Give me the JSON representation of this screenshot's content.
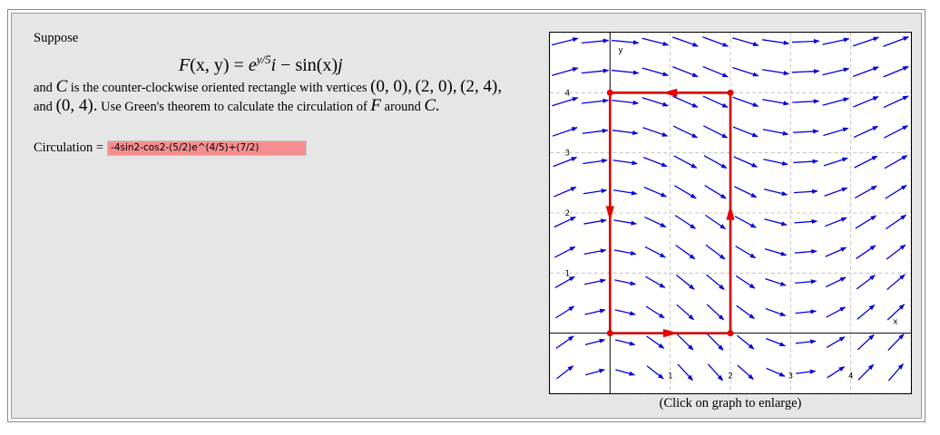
{
  "problem": {
    "intro": "Suppose",
    "formula": {
      "lhs_vec": "F",
      "lhs_args": "(x, y) =",
      "exp_base": "e",
      "exp_power": "y/5",
      "i_vec": "i",
      "minus_sin": "− sin(x)",
      "j_vec": "j"
    },
    "text1": "and",
    "curve_name": "C",
    "text2": "is the counter-clockwise oriented rectangle with vertices",
    "v1": "(0, 0),",
    "v2": "(2, 0),",
    "v3": "(2, 4),",
    "text3": "and",
    "v4": "(0, 4).",
    "text4": "Use Green's theorem to calculate the circulation of",
    "field_name": "F",
    "text5": "around",
    "curve_name2": "C."
  },
  "answer": {
    "label": "Circulation =",
    "value": "-4sin2-cos2-(5/2)e^(4/5)+(7/2)",
    "field_color": "#f58e8e"
  },
  "graph": {
    "caption": "(Click on graph to enlarge)",
    "x_axis_label": "x",
    "y_axis_label": "y",
    "x_ticks": [
      "1",
      "2",
      "3",
      "4"
    ],
    "y_ticks": [
      "1",
      "2",
      "3",
      "4"
    ],
    "x_range": [
      -1,
      5
    ],
    "y_range": [
      -1,
      5
    ],
    "field_color": "#0000dd",
    "curve_color": "#e60000",
    "vertices": [
      [
        0,
        0
      ],
      [
        2,
        0
      ],
      [
        2,
        4
      ],
      [
        0,
        4
      ]
    ]
  }
}
